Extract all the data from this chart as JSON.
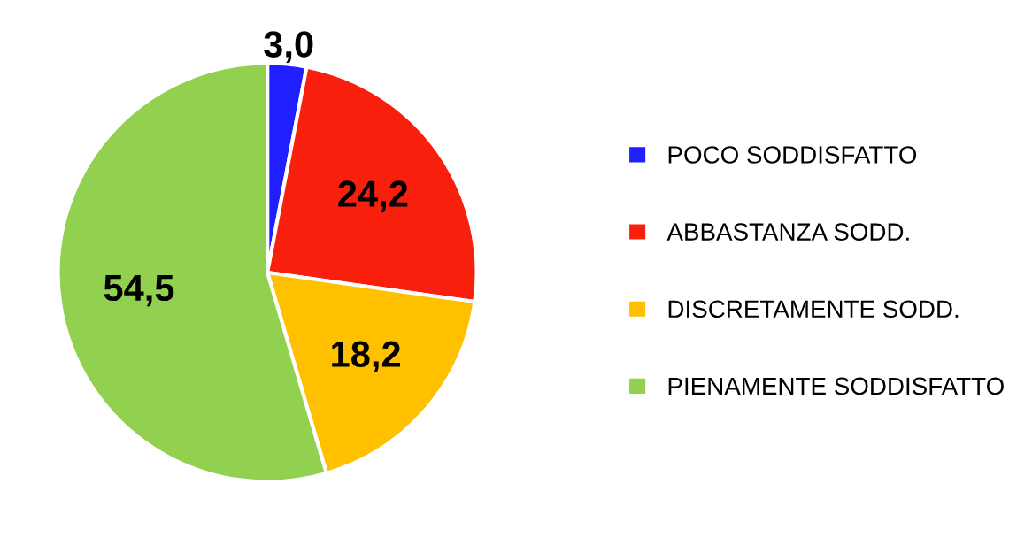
{
  "chart_data": {
    "type": "pie",
    "categories": [
      "POCO SODDISFATTO",
      "ABBASTANZA SODD.",
      "DISCRETAMENTE SODD.",
      "PIENAMENTE SODDISFATTO"
    ],
    "values": [
      3.0,
      24.2,
      18.2,
      54.5
    ],
    "colors": [
      "#1f1fff",
      "#f8200c",
      "#ffc000",
      "#92d050"
    ],
    "value_labels": [
      "3,0",
      "24,2",
      "18,2",
      "54,5"
    ],
    "legend": "right"
  }
}
